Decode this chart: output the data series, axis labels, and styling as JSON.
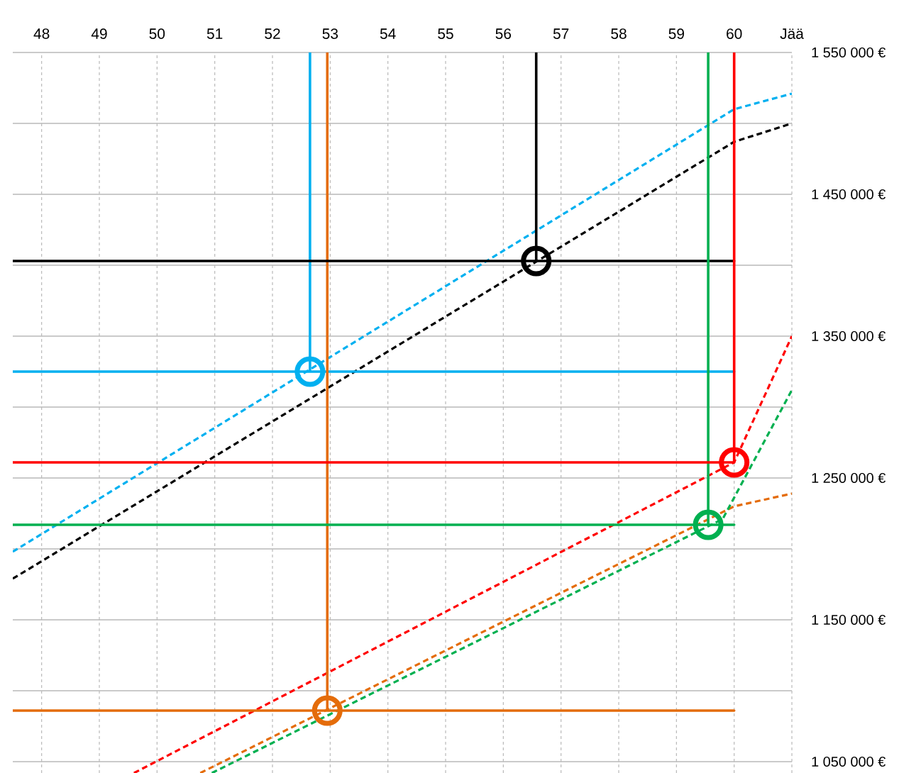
{
  "chart_data": {
    "type": "line",
    "xlim": [
      47.5,
      61
    ],
    "xticks": [
      48,
      49,
      50,
      51,
      52,
      53,
      54,
      55,
      56,
      57,
      58,
      59,
      60,
      {
        "value": 61,
        "label": "Jää"
      }
    ],
    "ylim": [
      1042000,
      1550000
    ],
    "yticks": [
      {
        "value": 1050000,
        "label": "1 050 000 €"
      },
      {
        "value": 1100000,
        "label": null
      },
      {
        "value": 1150000,
        "label": "1 150 000 €"
      },
      {
        "value": 1200000,
        "label": null
      },
      {
        "value": 1250000,
        "label": "1 250 000 €"
      },
      {
        "value": 1300000,
        "label": null
      },
      {
        "value": 1350000,
        "label": "1 350 000 €"
      },
      {
        "value": 1400000,
        "label": null
      },
      {
        "value": 1450000,
        "label": "1 450 000 €"
      },
      {
        "value": 1500000,
        "label": null
      },
      {
        "value": 1550000,
        "label": "1 550 000 €"
      }
    ],
    "grid": true,
    "series": [
      {
        "line_style": "dashed",
        "color": "#00b0f0",
        "x": [
          47.5,
          60,
          61
        ],
        "values": [
          1198000,
          1510000,
          1521000
        ]
      },
      {
        "line_style": "dashed",
        "color": "#000000",
        "x": [
          47.5,
          60,
          61
        ],
        "values": [
          1179000,
          1487000,
          1500000
        ]
      },
      {
        "line_style": "dashed",
        "color": "#ff0000",
        "x": [
          49.6,
          60,
          61
        ],
        "values": [
          1042000,
          1261000,
          1350000
        ]
      },
      {
        "line_style": "dashed",
        "color": "#e46c0a",
        "x": [
          50.75,
          60,
          61
        ],
        "values": [
          1042000,
          1230000,
          1239000
        ]
      },
      {
        "line_style": "dashed",
        "color": "#00b050",
        "x": [
          50.95,
          59.8,
          61
        ],
        "values": [
          1042000,
          1221000,
          1312000
        ]
      },
      {
        "line_style": "solid",
        "color": "#00b0f0",
        "x": [
          47.5,
          60,
          52.65,
          52.65
        ],
        "values": [
          1325000,
          1325000,
          1325000,
          1550000
        ]
      },
      {
        "line_style": "solid",
        "color": "#e46c0a",
        "x": [
          47.5,
          60,
          52.95,
          52.95
        ],
        "values": [
          1086000,
          1086000,
          1086000,
          1550000
        ]
      },
      {
        "line_style": "solid",
        "color": "#000000",
        "x": [
          47.5,
          60,
          56.57,
          56.57
        ],
        "values": [
          1403000,
          1403000,
          1403000,
          1550000
        ]
      },
      {
        "line_style": "solid",
        "color": "#00b050",
        "x": [
          47.5,
          60,
          59.55,
          59.55
        ],
        "values": [
          1217000,
          1217000,
          1217000,
          1550000
        ]
      },
      {
        "line_style": "solid",
        "color": "#ff0000",
        "x": [
          47.5,
          60,
          60
        ],
        "values": [
          1261000,
          1261000,
          1550000
        ]
      },
      {
        "type": "scatter",
        "marker": "circle",
        "colors": [
          "#00b0f0",
          "#e46c0a",
          "#000000",
          "#00b050",
          "#ff0000"
        ],
        "x": [
          52.65,
          52.95,
          56.57,
          59.55,
          60
        ],
        "values": [
          1325000,
          1086000,
          1403000,
          1217000,
          1261000
        ]
      }
    ]
  }
}
